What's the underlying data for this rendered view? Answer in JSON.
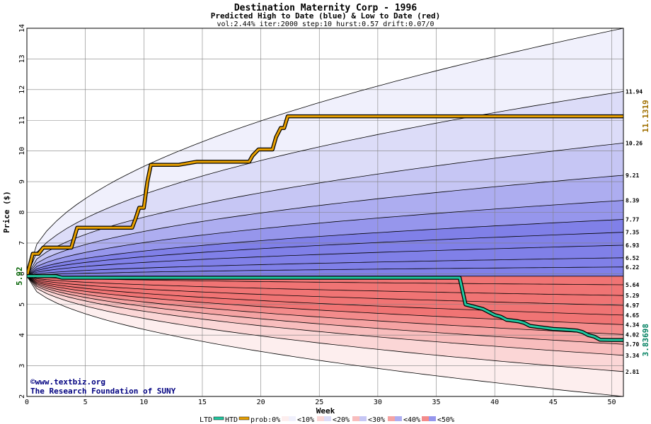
{
  "chart_data": {
    "type": "area",
    "title": "Destination Maternity Corp - 1996",
    "subtitle": "Predicted High to Date (blue) &  Low to Date (red)",
    "params": "vol:2.44% iter:2000 step:10 hurst:0.57 drift:0.07/0",
    "xlabel": "Week",
    "ylabel": "Price ($)",
    "xlim": [
      0,
      51
    ],
    "ylim": [
      2,
      14
    ],
    "xticks": [
      0,
      5,
      10,
      15,
      20,
      25,
      30,
      35,
      40,
      45,
      50
    ],
    "yticks": [
      2,
      3,
      4,
      5,
      6,
      7,
      8,
      9,
      10,
      11,
      12,
      13,
      14
    ],
    "start_value": "5.92",
    "start_price": 5.92,
    "grid": true,
    "high_bands": [
      {
        "prob": "0%",
        "end": 14.0,
        "color": "#f0f0fc"
      },
      {
        "prob": "10%",
        "end": 11.94,
        "color": "#dcdcf8"
      },
      {
        "prob": "20%",
        "end": 10.26,
        "color": "#c6c6f4"
      },
      {
        "prob": "30%",
        "end": 9.21,
        "color": "#adadf0"
      },
      {
        "prob": "40%",
        "end": 8.39,
        "color": "#9696ec"
      },
      {
        "prob": "50%",
        "end": 7.77,
        "color": "#8080e8"
      }
    ],
    "high_lines": [
      11.94,
      10.26,
      9.21,
      8.39,
      7.77,
      7.35,
      6.93,
      6.52,
      6.22
    ],
    "low_lines": [
      5.64,
      5.29,
      4.97,
      4.65,
      4.34,
      4.02,
      3.7,
      3.34,
      2.81
    ],
    "low_bands": [
      {
        "prob": "0%",
        "end": 2.0,
        "color": "#fdeeee"
      },
      {
        "prob": "10%",
        "end": 2.81,
        "color": "#fbd6d6"
      },
      {
        "prob": "20%",
        "end": 3.34,
        "color": "#f8bdbd"
      },
      {
        "prob": "30%",
        "end": 3.7,
        "color": "#f5a3a3"
      },
      {
        "prob": "40%",
        "end": 4.02,
        "color": "#f38b8b"
      },
      {
        "prob": "50%",
        "end": 4.34,
        "color": "#f07474"
      }
    ],
    "right_labels": [
      "11.94",
      "10.26",
      "9.21",
      "8.39",
      "7.77",
      "7.35",
      "6.93",
      "6.52",
      "6.22",
      "5.64",
      "5.29",
      "4.97",
      "4.65",
      "4.34",
      "4.02",
      "3.70",
      "3.34",
      "2.81"
    ],
    "htd_label": "11.1319",
    "htd_value": 11.1319,
    "ltd_label": "3.83698",
    "ltd_value": 3.83698,
    "htd_series": {
      "x": [
        0,
        0.5,
        1,
        1.4,
        2,
        3,
        3.8,
        4.3,
        5,
        7,
        9,
        9.3,
        9.6,
        10,
        10.3,
        10.6,
        12,
        13,
        14.5,
        17,
        19,
        19.3,
        19.8,
        20,
        21,
        21.3,
        21.7,
        22,
        22.3,
        23,
        30,
        40,
        51
      ],
      "y": [
        5.92,
        6.65,
        6.65,
        6.85,
        6.85,
        6.85,
        6.85,
        7.5,
        7.5,
        7.5,
        7.5,
        7.8,
        8.15,
        8.15,
        9.0,
        9.55,
        9.55,
        9.55,
        9.65,
        9.65,
        9.65,
        9.85,
        10.05,
        10.05,
        10.05,
        10.45,
        10.75,
        10.75,
        11.13,
        11.13,
        11.13,
        11.13,
        11.13
      ]
    },
    "ltd_series": {
      "x": [
        0,
        1,
        2.5,
        3,
        10,
        20,
        30,
        37,
        37.5,
        38,
        39,
        40,
        40.5,
        41,
        42,
        42.5,
        43,
        44,
        45,
        46,
        47,
        47.5,
        48,
        48.5,
        49,
        50,
        51
      ],
      "y": [
        5.92,
        5.92,
        5.92,
        5.87,
        5.87,
        5.87,
        5.87,
        5.87,
        5.0,
        4.95,
        4.85,
        4.65,
        4.6,
        4.5,
        4.45,
        4.4,
        4.3,
        4.25,
        4.2,
        4.18,
        4.15,
        4.1,
        4.0,
        3.95,
        3.85,
        3.84,
        3.84
      ]
    }
  },
  "credits": {
    "site": "©www.textbiz.org",
    "org": "The Research Foundation of SUNY"
  },
  "legend": {
    "ltd": "LTD",
    "htd": "HTD",
    "prob": "prob:0%",
    "b10": "<10%",
    "b20": "<20%",
    "b30": "<30%",
    "b40": "<40%",
    "b50": "<50%"
  },
  "colors": {
    "htd": "#e8a000",
    "ltd": "#20c8a0",
    "grid": "#808080",
    "htd_label": "#a07000",
    "ltd_label": "#008060",
    "start_label": "#006000"
  }
}
